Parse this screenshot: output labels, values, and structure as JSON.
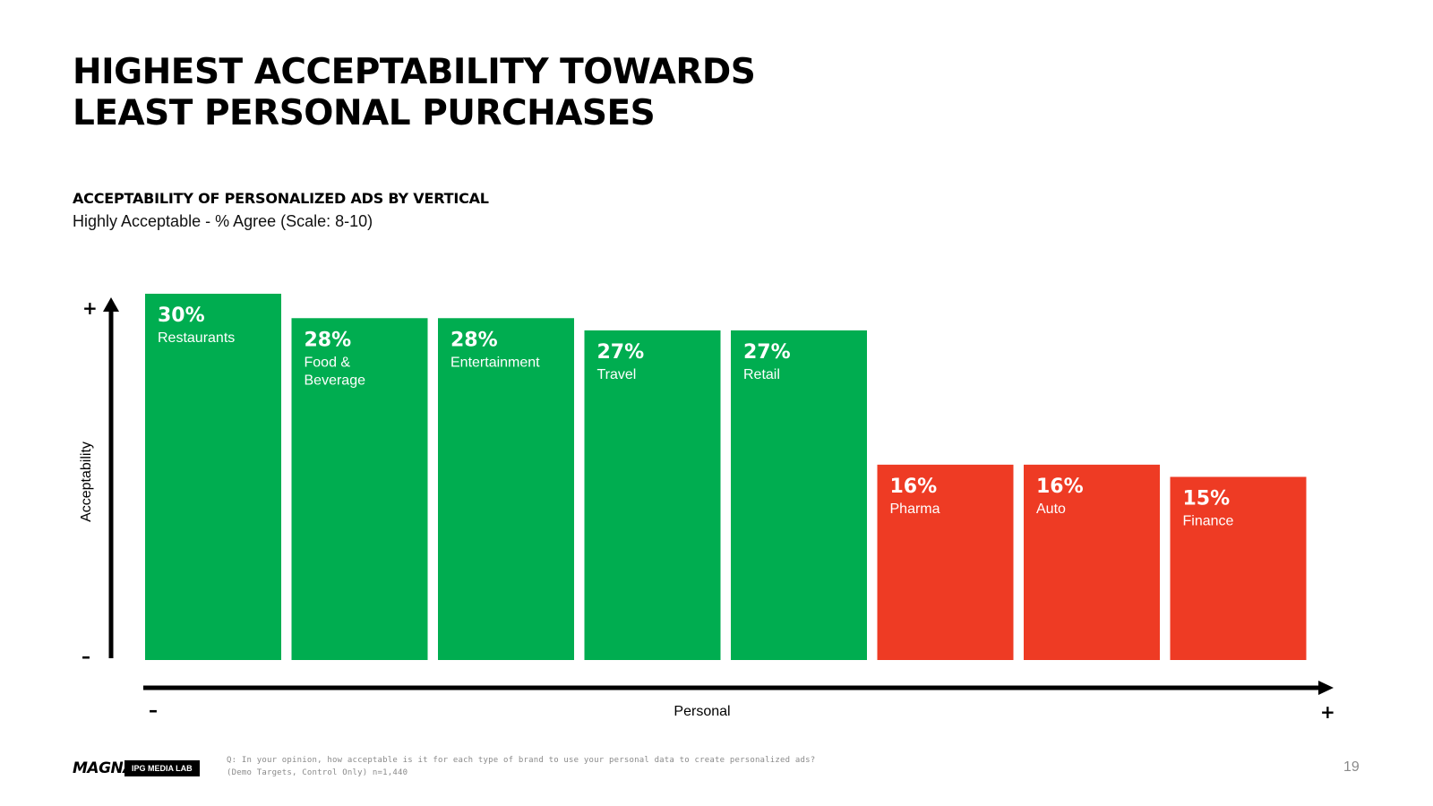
{
  "title": {
    "line1": "HIGHEST ACCEPTABILITY TOWARDS",
    "line2": "LEAST PERSONAL PURCHASES"
  },
  "subtitle": "ACCEPTABILITY OF PERSONALIZED ADS BY VERTICAL",
  "subnote": "Highly Acceptable - % Agree (Scale: 8-10)",
  "chart_data": {
    "type": "bar",
    "title": "ACCEPTABILITY OF PERSONALIZED ADS BY VERTICAL",
    "ylabel": "Acceptability",
    "xlabel": "Personal",
    "categories": [
      "Restaurants",
      "Food & Beverage",
      "Entertainment",
      "Travel",
      "Retail",
      "Pharma",
      "Auto",
      "Finance"
    ],
    "label_lines": [
      [
        "Restaurants"
      ],
      [
        "Food &",
        "Beverage"
      ],
      [
        "Entertainment"
      ],
      [
        "Travel"
      ],
      [
        "Retail"
      ],
      [
        "Pharma"
      ],
      [
        "Auto"
      ],
      [
        "Finance"
      ]
    ],
    "values": [
      30,
      28,
      28,
      27,
      27,
      16,
      16,
      15
    ],
    "value_labels": [
      "30%",
      "28%",
      "28%",
      "27%",
      "27%",
      "16%",
      "16%",
      "15%"
    ],
    "groups": [
      "high",
      "high",
      "high",
      "high",
      "high",
      "low",
      "low",
      "low"
    ],
    "colors": {
      "high": "#00ad50",
      "low": "#ee3b24"
    },
    "y_axis_signs": {
      "top": "+",
      "bottom": "–"
    },
    "x_axis_signs": {
      "left": "–",
      "right": "+"
    },
    "ylim": [
      0,
      30
    ]
  },
  "footer": {
    "question": "Q: In your opinion, how acceptable is it for each type of brand to use your personal data to create personalized ads?",
    "sample": "(Demo Targets, Control Only) n=1,440",
    "logo_text": "MAGNA",
    "lab_badge": "IPG MEDIA LAB",
    "page_number": "19"
  }
}
